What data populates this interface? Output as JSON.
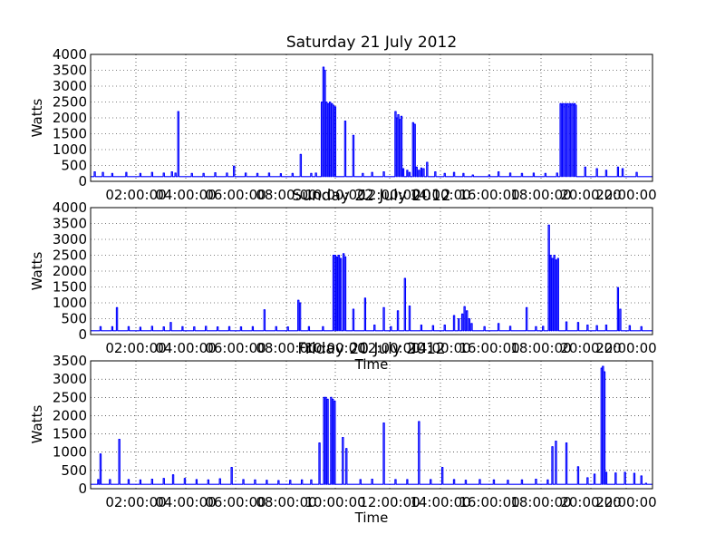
{
  "chart_data": [
    {
      "type": "line",
      "title": "Saturday 21 July 2012",
      "xlabel": "",
      "ylabel": "Watts",
      "xlim": [
        0,
        24
      ],
      "ylim": [
        0,
        4000
      ],
      "yticks": [
        "0",
        "500",
        "1000",
        "1500",
        "2000",
        "2500",
        "3000",
        "3500",
        "4000"
      ],
      "xticks": [
        "02:00:00",
        "04:00:00",
        "06:00:00",
        "08:00:00",
        "10:00:00",
        "12:00:00",
        "14:00:00",
        "16:00:00",
        "18:00:00",
        "20:00:00",
        "22:00:00"
      ],
      "grid": true,
      "series": [
        {
          "name": "",
          "color": "#0000ff",
          "baseline": 150,
          "events": [
            {
              "t": 0.15,
              "v": 300
            },
            {
              "t": 0.5,
              "v": 280
            },
            {
              "t": 0.9,
              "v": 250
            },
            {
              "t": 1.5,
              "v": 280
            },
            {
              "t": 2.1,
              "v": 250
            },
            {
              "t": 2.6,
              "v": 280
            },
            {
              "t": 3.1,
              "v": 260
            },
            {
              "t": 3.45,
              "v": 300
            },
            {
              "t": 3.6,
              "v": 260
            },
            {
              "t": 3.72,
              "v": 2200
            },
            {
              "t": 4.3,
              "v": 250
            },
            {
              "t": 4.8,
              "v": 250
            },
            {
              "t": 5.3,
              "v": 270
            },
            {
              "t": 5.8,
              "v": 260
            },
            {
              "t": 6.1,
              "v": 480
            },
            {
              "t": 6.6,
              "v": 260
            },
            {
              "t": 7.1,
              "v": 250
            },
            {
              "t": 7.6,
              "v": 260
            },
            {
              "t": 8.1,
              "v": 240
            },
            {
              "t": 8.6,
              "v": 250
            },
            {
              "t": 8.95,
              "v": 850
            },
            {
              "t": 9.4,
              "v": 250
            },
            {
              "t": 9.6,
              "v": 260
            },
            {
              "t": 9.85,
              "v": 2500
            },
            {
              "t": 9.92,
              "v": 3600
            },
            {
              "t": 9.98,
              "v": 3500
            },
            {
              "t": 10.05,
              "v": 2500
            },
            {
              "t": 10.12,
              "v": 2450
            },
            {
              "t": 10.2,
              "v": 2500
            },
            {
              "t": 10.28,
              "v": 2450
            },
            {
              "t": 10.34,
              "v": 2400
            },
            {
              "t": 10.42,
              "v": 2350
            },
            {
              "t": 10.85,
              "v": 1900
            },
            {
              "t": 11.2,
              "v": 1450
            },
            {
              "t": 11.6,
              "v": 250
            },
            {
              "t": 12.0,
              "v": 280
            },
            {
              "t": 12.5,
              "v": 300
            },
            {
              "t": 13.0,
              "v": 2200
            },
            {
              "t": 13.06,
              "v": 2000
            },
            {
              "t": 13.12,
              "v": 2100
            },
            {
              "t": 13.18,
              "v": 1950
            },
            {
              "t": 13.25,
              "v": 2050
            },
            {
              "t": 13.33,
              "v": 400
            },
            {
              "t": 13.5,
              "v": 350
            },
            {
              "t": 13.6,
              "v": 280
            },
            {
              "t": 13.75,
              "v": 1850
            },
            {
              "t": 13.82,
              "v": 1800
            },
            {
              "t": 13.9,
              "v": 450
            },
            {
              "t": 14.0,
              "v": 350
            },
            {
              "t": 14.1,
              "v": 420
            },
            {
              "t": 14.2,
              "v": 400
            },
            {
              "t": 14.35,
              "v": 600
            },
            {
              "t": 14.7,
              "v": 300
            },
            {
              "t": 15.1,
              "v": 250
            },
            {
              "t": 15.5,
              "v": 280
            },
            {
              "t": 15.9,
              "v": 250
            },
            {
              "t": 16.3,
              "v": 200
            },
            {
              "t": 17.0,
              "v": 200
            },
            {
              "t": 17.4,
              "v": 300
            },
            {
              "t": 17.9,
              "v": 260
            },
            {
              "t": 18.4,
              "v": 250
            },
            {
              "t": 18.9,
              "v": 260
            },
            {
              "t": 19.4,
              "v": 250
            },
            {
              "t": 19.9,
              "v": 260
            },
            {
              "t": 20.05,
              "v": 2450
            },
            {
              "t": 20.1,
              "v": 2400
            },
            {
              "t": 20.15,
              "v": 2450
            },
            {
              "t": 20.2,
              "v": 2350
            },
            {
              "t": 20.25,
              "v": 2450
            },
            {
              "t": 20.3,
              "v": 2400
            },
            {
              "t": 20.35,
              "v": 2450
            },
            {
              "t": 20.4,
              "v": 2350
            },
            {
              "t": 20.45,
              "v": 2450
            },
            {
              "t": 20.5,
              "v": 2400
            },
            {
              "t": 20.55,
              "v": 2450
            },
            {
              "t": 20.6,
              "v": 2400
            },
            {
              "t": 20.65,
              "v": 2450
            },
            {
              "t": 20.7,
              "v": 2400
            },
            {
              "t": 21.1,
              "v": 450
            },
            {
              "t": 21.6,
              "v": 400
            },
            {
              "t": 22.0,
              "v": 350
            },
            {
              "t": 22.5,
              "v": 450
            },
            {
              "t": 22.7,
              "v": 400
            },
            {
              "t": 23.3,
              "v": 280
            }
          ]
        }
      ]
    },
    {
      "type": "line",
      "title": "Sunday 22 July 2012",
      "xlabel": "Time",
      "ylabel": "Watts",
      "xlim": [
        0,
        24
      ],
      "ylim": [
        0,
        4000
      ],
      "yticks": [
        "0",
        "500",
        "1000",
        "1500",
        "2000",
        "2500",
        "3000",
        "3500",
        "4000"
      ],
      "xticks": [
        "02:00:00",
        "04:00:00",
        "06:00:00",
        "08:00:00",
        "10:00:00",
        "12:00:00",
        "14:00:00",
        "16:00:00",
        "18:00:00",
        "20:00:00",
        "22:00:00"
      ],
      "grid": true,
      "series": [
        {
          "name": "",
          "color": "#0000ff",
          "baseline": 120,
          "events": [
            {
              "t": 0.4,
              "v": 250
            },
            {
              "t": 0.9,
              "v": 250
            },
            {
              "t": 1.1,
              "v": 850
            },
            {
              "t": 1.6,
              "v": 250
            },
            {
              "t": 2.1,
              "v": 230
            },
            {
              "t": 2.6,
              "v": 260
            },
            {
              "t": 3.1,
              "v": 240
            },
            {
              "t": 3.4,
              "v": 380
            },
            {
              "t": 3.9,
              "v": 250
            },
            {
              "t": 4.4,
              "v": 240
            },
            {
              "t": 4.9,
              "v": 260
            },
            {
              "t": 5.4,
              "v": 240
            },
            {
              "t": 5.9,
              "v": 250
            },
            {
              "t": 6.4,
              "v": 240
            },
            {
              "t": 6.9,
              "v": 250
            },
            {
              "t": 7.4,
              "v": 780
            },
            {
              "t": 7.9,
              "v": 250
            },
            {
              "t": 8.4,
              "v": 240
            },
            {
              "t": 8.85,
              "v": 1080
            },
            {
              "t": 8.92,
              "v": 1000
            },
            {
              "t": 9.3,
              "v": 250
            },
            {
              "t": 9.9,
              "v": 250
            },
            {
              "t": 10.35,
              "v": 2500
            },
            {
              "t": 10.42,
              "v": 2500
            },
            {
              "t": 10.5,
              "v": 2450
            },
            {
              "t": 10.58,
              "v": 2500
            },
            {
              "t": 10.66,
              "v": 2400
            },
            {
              "t": 10.78,
              "v": 2550
            },
            {
              "t": 10.85,
              "v": 2450
            },
            {
              "t": 11.2,
              "v": 800
            },
            {
              "t": 11.7,
              "v": 1150
            },
            {
              "t": 12.1,
              "v": 300
            },
            {
              "t": 12.5,
              "v": 850
            },
            {
              "t": 12.8,
              "v": 250
            },
            {
              "t": 13.1,
              "v": 750
            },
            {
              "t": 13.4,
              "v": 1770
            },
            {
              "t": 13.6,
              "v": 900
            },
            {
              "t": 14.1,
              "v": 300
            },
            {
              "t": 14.6,
              "v": 280
            },
            {
              "t": 15.1,
              "v": 300
            },
            {
              "t": 15.5,
              "v": 600
            },
            {
              "t": 15.7,
              "v": 500
            },
            {
              "t": 15.85,
              "v": 650
            },
            {
              "t": 15.95,
              "v": 880
            },
            {
              "t": 16.05,
              "v": 750
            },
            {
              "t": 16.15,
              "v": 500
            },
            {
              "t": 16.25,
              "v": 350
            },
            {
              "t": 16.8,
              "v": 250
            },
            {
              "t": 17.4,
              "v": 350
            },
            {
              "t": 17.9,
              "v": 260
            },
            {
              "t": 18.6,
              "v": 850
            },
            {
              "t": 19.0,
              "v": 250
            },
            {
              "t": 19.3,
              "v": 260
            },
            {
              "t": 19.55,
              "v": 3450
            },
            {
              "t": 19.62,
              "v": 2500
            },
            {
              "t": 19.7,
              "v": 2400
            },
            {
              "t": 19.78,
              "v": 2500
            },
            {
              "t": 19.86,
              "v": 2350
            },
            {
              "t": 19.94,
              "v": 2400
            },
            {
              "t": 20.3,
              "v": 400
            },
            {
              "t": 20.8,
              "v": 380
            },
            {
              "t": 21.2,
              "v": 300
            },
            {
              "t": 21.6,
              "v": 280
            },
            {
              "t": 22.0,
              "v": 300
            },
            {
              "t": 22.5,
              "v": 1480
            },
            {
              "t": 22.6,
              "v": 800
            },
            {
              "t": 23.0,
              "v": 280
            },
            {
              "t": 23.5,
              "v": 250
            }
          ]
        }
      ]
    },
    {
      "type": "line",
      "title": "Friday 20 July 2012",
      "xlabel": "Time",
      "ylabel": "Watts",
      "xlim": [
        0,
        24
      ],
      "ylim": [
        0,
        3500
      ],
      "yticks": [
        "0",
        "500",
        "1000",
        "1500",
        "2000",
        "2500",
        "3000",
        "3500"
      ],
      "xticks": [
        "02:00:00",
        "04:00:00",
        "06:00:00",
        "08:00:00",
        "10:00:00",
        "12:00:00",
        "14:00:00",
        "16:00:00",
        "18:00:00",
        "20:00:00",
        "22:00:00"
      ],
      "grid": true,
      "series": [
        {
          "name": "",
          "color": "#0000ff",
          "baseline": 120,
          "events": [
            {
              "t": 0.3,
              "v": 250
            },
            {
              "t": 0.4,
              "v": 950
            },
            {
              "t": 0.8,
              "v": 250
            },
            {
              "t": 1.2,
              "v": 1350
            },
            {
              "t": 1.6,
              "v": 250
            },
            {
              "t": 2.1,
              "v": 240
            },
            {
              "t": 2.6,
              "v": 260
            },
            {
              "t": 3.1,
              "v": 280
            },
            {
              "t": 3.5,
              "v": 380
            },
            {
              "t": 4.0,
              "v": 280
            },
            {
              "t": 4.5,
              "v": 250
            },
            {
              "t": 5.0,
              "v": 240
            },
            {
              "t": 5.5,
              "v": 270
            },
            {
              "t": 6.0,
              "v": 580
            },
            {
              "t": 6.5,
              "v": 250
            },
            {
              "t": 7.0,
              "v": 240
            },
            {
              "t": 7.5,
              "v": 230
            },
            {
              "t": 8.0,
              "v": 220
            },
            {
              "t": 8.5,
              "v": 230
            },
            {
              "t": 9.0,
              "v": 240
            },
            {
              "t": 9.4,
              "v": 240
            },
            {
              "t": 9.75,
              "v": 1250
            },
            {
              "t": 9.95,
              "v": 2500
            },
            {
              "t": 10.02,
              "v": 2500
            },
            {
              "t": 10.1,
              "v": 2450
            },
            {
              "t": 10.25,
              "v": 2500
            },
            {
              "t": 10.32,
              "v": 2450
            },
            {
              "t": 10.4,
              "v": 2400
            },
            {
              "t": 10.75,
              "v": 1400
            },
            {
              "t": 10.9,
              "v": 1100
            },
            {
              "t": 11.5,
              "v": 250
            },
            {
              "t": 12.0,
              "v": 260
            },
            {
              "t": 12.5,
              "v": 1800
            },
            {
              "t": 13.0,
              "v": 250
            },
            {
              "t": 13.5,
              "v": 250
            },
            {
              "t": 14.0,
              "v": 1840
            },
            {
              "t": 14.5,
              "v": 250
            },
            {
              "t": 15.0,
              "v": 580
            },
            {
              "t": 15.5,
              "v": 250
            },
            {
              "t": 16.0,
              "v": 230
            },
            {
              "t": 16.6,
              "v": 250
            },
            {
              "t": 17.2,
              "v": 240
            },
            {
              "t": 17.8,
              "v": 230
            },
            {
              "t": 18.4,
              "v": 240
            },
            {
              "t": 19.0,
              "v": 260
            },
            {
              "t": 19.5,
              "v": 240
            },
            {
              "t": 19.7,
              "v": 1150
            },
            {
              "t": 19.85,
              "v": 1300
            },
            {
              "t": 20.3,
              "v": 1250
            },
            {
              "t": 20.8,
              "v": 600
            },
            {
              "t": 21.2,
              "v": 300
            },
            {
              "t": 21.5,
              "v": 400
            },
            {
              "t": 21.8,
              "v": 3300
            },
            {
              "t": 21.86,
              "v": 3350
            },
            {
              "t": 21.92,
              "v": 3200
            },
            {
              "t": 22.0,
              "v": 450
            },
            {
              "t": 22.4,
              "v": 430
            },
            {
              "t": 22.8,
              "v": 450
            },
            {
              "t": 23.2,
              "v": 420
            },
            {
              "t": 23.5,
              "v": 350
            },
            {
              "t": 23.7,
              "v": 150
            }
          ]
        }
      ]
    }
  ]
}
